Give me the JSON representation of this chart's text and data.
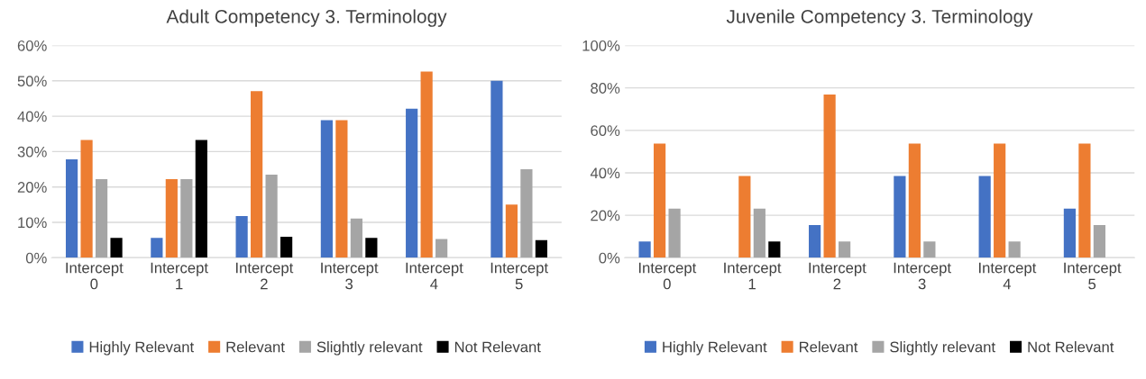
{
  "chart_data": [
    {
      "type": "bar",
      "title": "Adult Competency 3. Terminology",
      "categories": [
        "Intercept 0",
        "Intercept 1",
        "Intercept 2",
        "Intercept 3",
        "Intercept 4",
        "Intercept 5"
      ],
      "series": [
        {
          "name": "Highly Relevant",
          "color": "#4472c4",
          "values": [
            27.8,
            5.6,
            11.8,
            38.9,
            42.1,
            50
          ]
        },
        {
          "name": "Relevant",
          "color": "#ed7d31",
          "values": [
            33.3,
            22.2,
            47.1,
            38.9,
            52.6,
            15
          ]
        },
        {
          "name": "Slightly relevant",
          "color": "#a5a5a5",
          "values": [
            22.2,
            22.2,
            23.5,
            11.1,
            5.3,
            25
          ]
        },
        {
          "name": "Not Relevant",
          "color": "#000000",
          "values": [
            5.6,
            33.3,
            5.9,
            5.6,
            0,
            5
          ]
        }
      ],
      "ylim": [
        0,
        60
      ],
      "yticks": [
        {
          "value": 0,
          "label": "0%"
        },
        {
          "value": 10,
          "label": "10%"
        },
        {
          "value": 20,
          "label": "20%"
        },
        {
          "value": 30,
          "label": "30%"
        },
        {
          "value": 40,
          "label": "40%"
        },
        {
          "value": 50,
          "label": "50%"
        },
        {
          "value": 60,
          "label": "60%"
        }
      ],
      "grid": "y",
      "legend": "bottom"
    },
    {
      "type": "bar",
      "title": "Juvenile Competency 3. Terminology",
      "categories": [
        "Intercept 0",
        "Intercept 1",
        "Intercept 2",
        "Intercept 3",
        "Intercept 4",
        "Intercept 5"
      ],
      "series": [
        {
          "name": "Highly Relevant",
          "color": "#4472c4",
          "values": [
            7.7,
            0,
            15.4,
            38.5,
            38.5,
            23.1
          ]
        },
        {
          "name": "Relevant",
          "color": "#ed7d31",
          "values": [
            53.8,
            38.5,
            76.9,
            53.8,
            53.8,
            53.8
          ]
        },
        {
          "name": "Slightly relevant",
          "color": "#a5a5a5",
          "values": [
            23.1,
            23.1,
            7.7,
            7.7,
            7.7,
            15.4
          ]
        },
        {
          "name": "Not Relevant",
          "color": "#000000",
          "values": [
            0,
            7.7,
            0,
            0,
            0,
            0
          ]
        }
      ],
      "ylim": [
        0,
        100
      ],
      "yticks": [
        {
          "value": 0,
          "label": "0%"
        },
        {
          "value": 20,
          "label": "20%"
        },
        {
          "value": 40,
          "label": "40%"
        },
        {
          "value": 60,
          "label": "60%"
        },
        {
          "value": 80,
          "label": "80%"
        },
        {
          "value": 100,
          "label": "100%"
        }
      ],
      "grid": "y",
      "legend": "bottom"
    }
  ]
}
